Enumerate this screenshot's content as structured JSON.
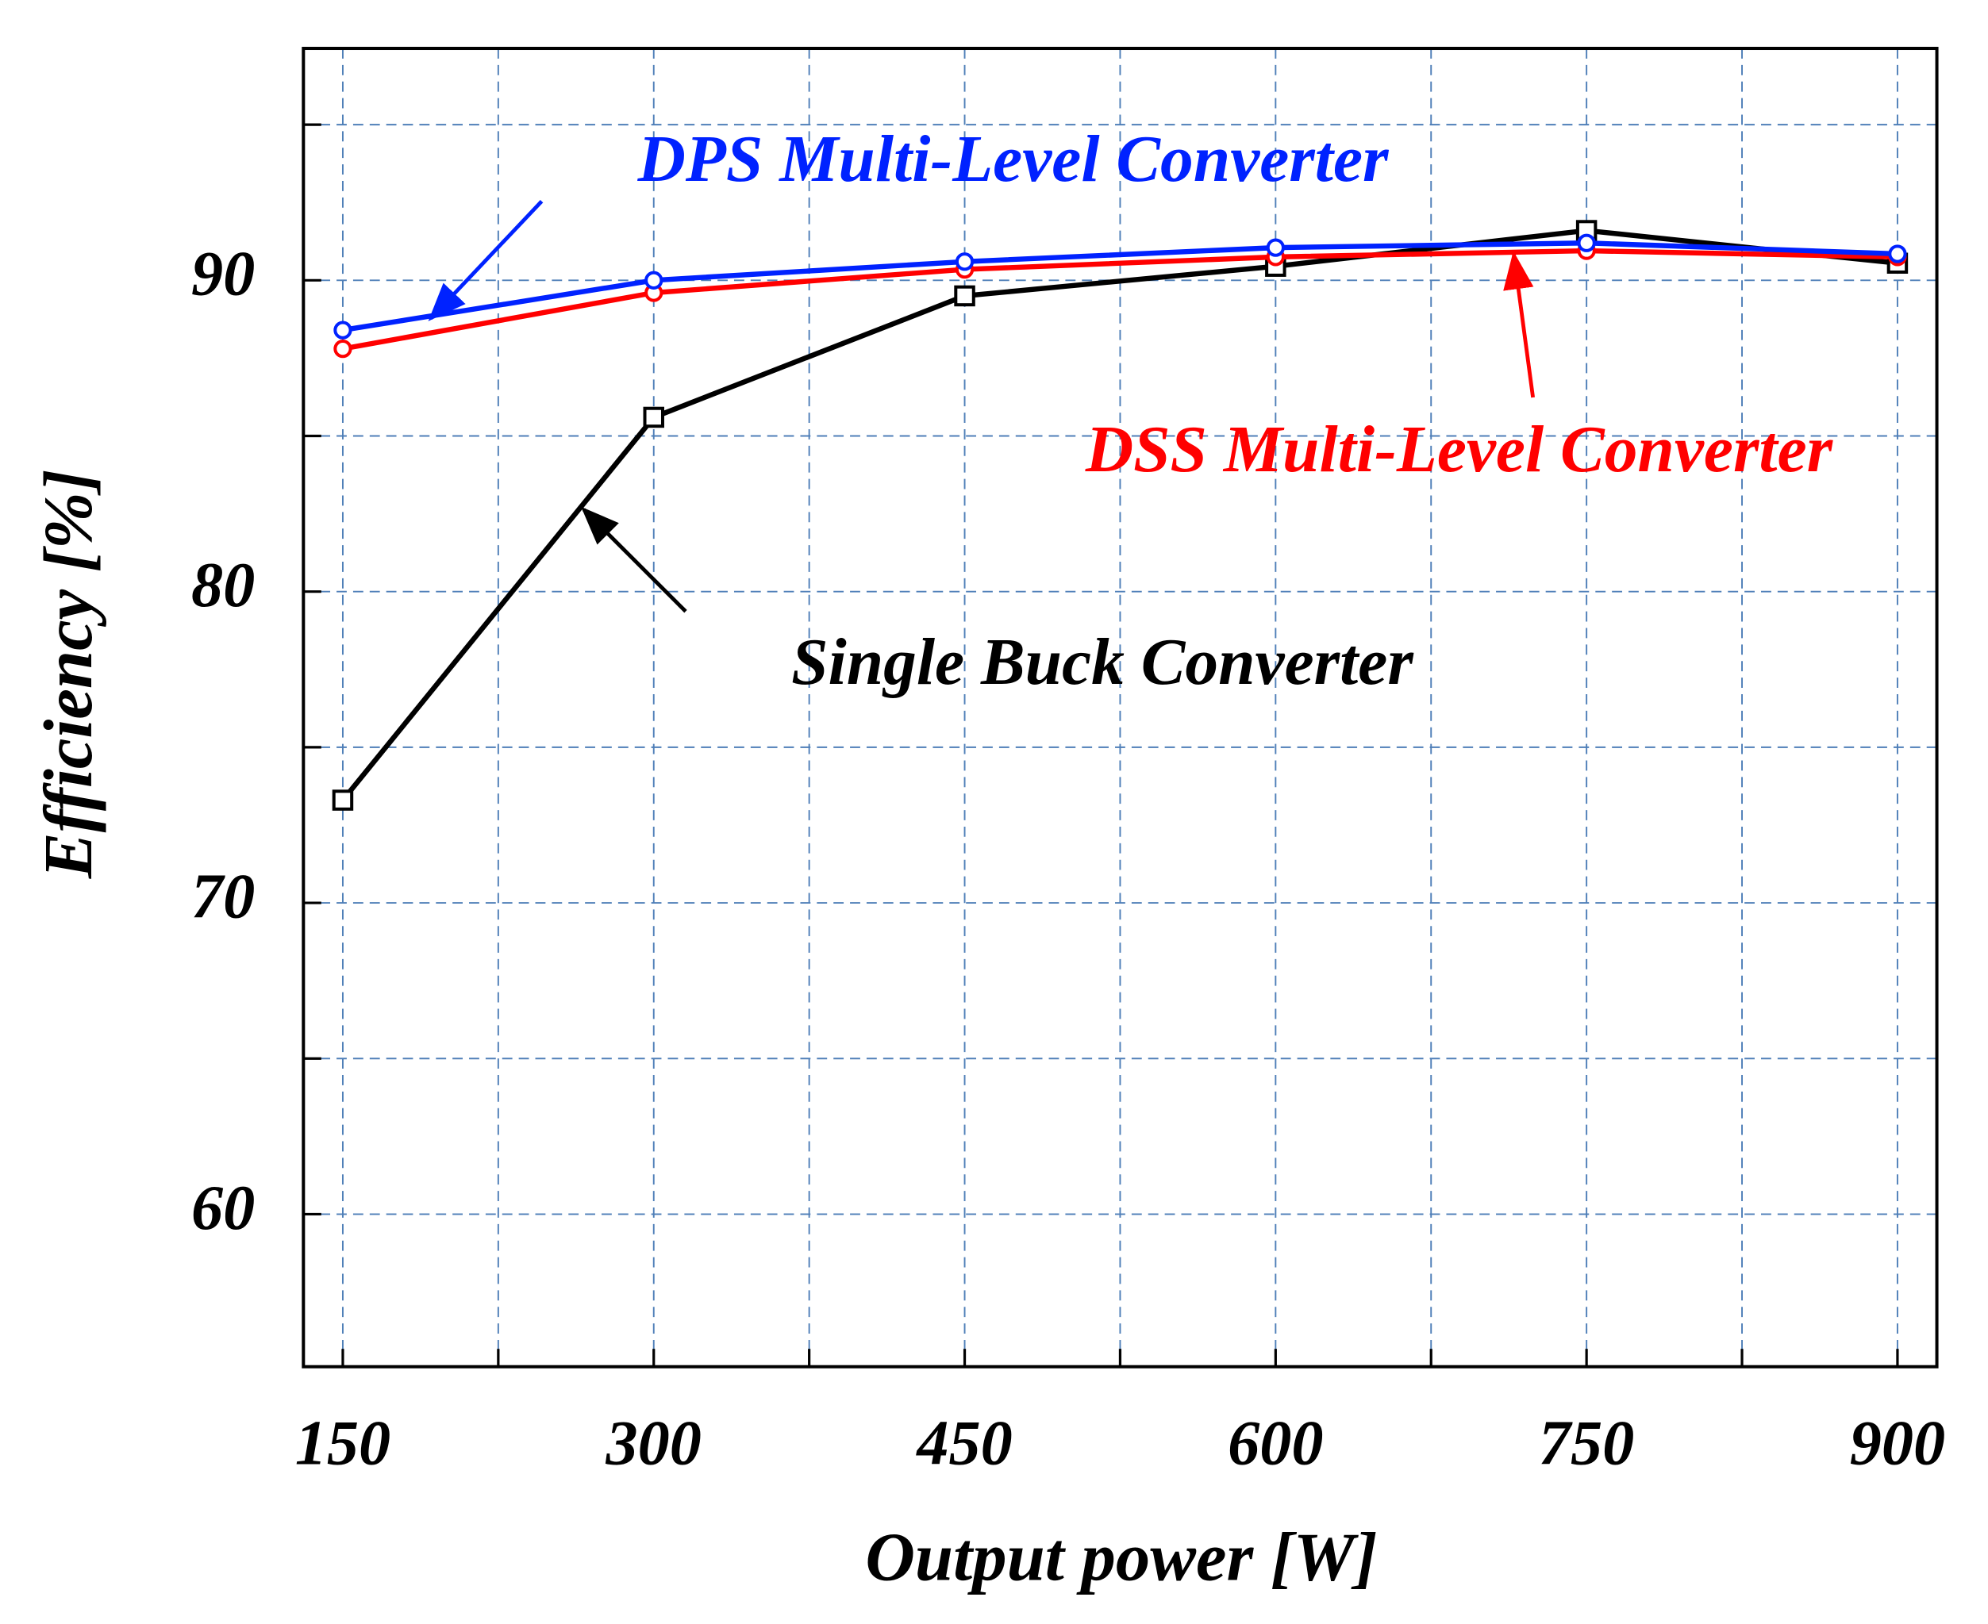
{
  "chart_data": {
    "type": "line",
    "xlabel": "Output power [W]",
    "ylabel": "Efficiency [%]",
    "x": [
      150,
      300,
      450,
      600,
      750,
      900
    ],
    "series": [
      {
        "name": "Single Buck Converter",
        "color": "#000000",
        "marker": "square",
        "values": [
          73.3,
          85.6,
          89.5,
          90.45,
          91.6,
          90.55
        ]
      },
      {
        "name": "DSS Multi-Level Converter",
        "color": "#ff0000",
        "marker": "circle",
        "values": [
          87.8,
          89.6,
          90.35,
          90.75,
          90.95,
          90.75
        ]
      },
      {
        "name": "DPS Multi-Level Converter",
        "color": "#0022ff",
        "marker": "circle",
        "values": [
          88.4,
          90.0,
          90.6,
          91.05,
          91.2,
          90.85
        ]
      }
    ],
    "xlim": [
      131,
      919
    ],
    "ylim": [
      55.1,
      97.45
    ],
    "xticks": [
      150,
      300,
      450,
      600,
      750,
      900
    ],
    "xminor": [
      225,
      375,
      525,
      675,
      825
    ],
    "yticks": [
      60,
      70,
      80,
      90
    ],
    "yminor": [
      65,
      75,
      85,
      95
    ],
    "grid": true,
    "grid_color": "#4f7fb8"
  }
}
